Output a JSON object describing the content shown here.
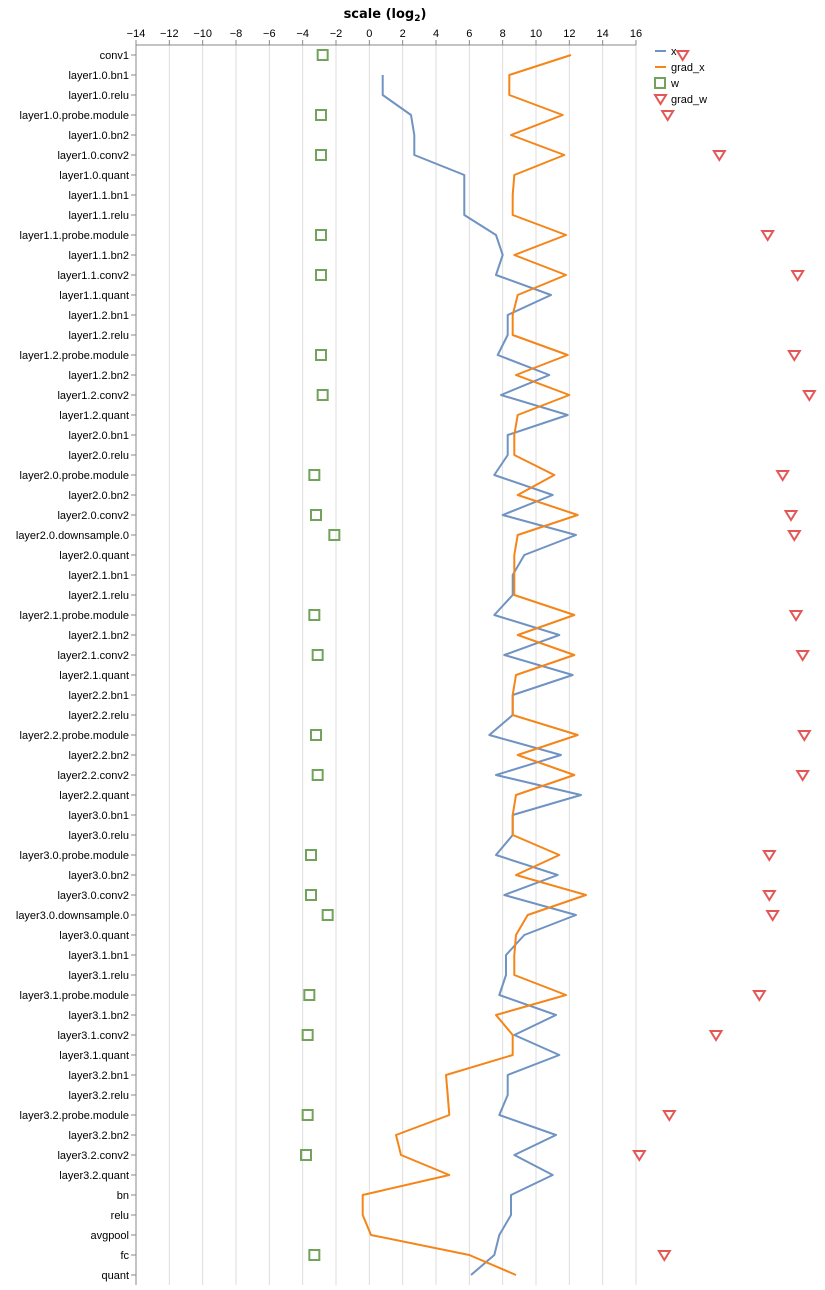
{
  "chart_data": {
    "type": "line",
    "title": "",
    "xlabel": "scale (log",
    "xlabel_sub": "2",
    "xlabel_close": ")",
    "xlim": [
      -14,
      16
    ],
    "x_ticks": [
      -14,
      -12,
      -10,
      -8,
      -6,
      -4,
      -2,
      0,
      2,
      4,
      6,
      8,
      10,
      12,
      14,
      16
    ],
    "x_tick_labels": [
      "−14",
      "−12",
      "−10",
      "−8",
      "−6",
      "−4",
      "−2",
      "0",
      "2",
      "4",
      "6",
      "8",
      "10",
      "12",
      "14",
      "16"
    ],
    "grid": true,
    "legend_position": "top-right",
    "categories": [
      "conv1",
      "layer1.0.bn1",
      "layer1.0.relu",
      "layer1.0.probe.module",
      "layer1.0.bn2",
      "layer1.0.conv2",
      "layer1.0.quant",
      "layer1.1.bn1",
      "layer1.1.relu",
      "layer1.1.probe.module",
      "layer1.1.bn2",
      "layer1.1.conv2",
      "layer1.1.quant",
      "layer1.2.bn1",
      "layer1.2.relu",
      "layer1.2.probe.module",
      "layer1.2.bn2",
      "layer1.2.conv2",
      "layer1.2.quant",
      "layer2.0.bn1",
      "layer2.0.relu",
      "layer2.0.probe.module",
      "layer2.0.bn2",
      "layer2.0.conv2",
      "layer2.0.downsample.0",
      "layer2.0.quant",
      "layer2.1.bn1",
      "layer2.1.relu",
      "layer2.1.probe.module",
      "layer2.1.bn2",
      "layer2.1.conv2",
      "layer2.1.quant",
      "layer2.2.bn1",
      "layer2.2.relu",
      "layer2.2.probe.module",
      "layer2.2.bn2",
      "layer2.2.conv2",
      "layer2.2.quant",
      "layer3.0.bn1",
      "layer3.0.relu",
      "layer3.0.probe.module",
      "layer3.0.bn2",
      "layer3.0.conv2",
      "layer3.0.downsample.0",
      "layer3.0.quant",
      "layer3.1.bn1",
      "layer3.1.relu",
      "layer3.1.probe.module",
      "layer3.1.bn2",
      "layer3.1.conv2",
      "layer3.1.quant",
      "layer3.2.bn1",
      "layer3.2.relu",
      "layer3.2.probe.module",
      "layer3.2.bn2",
      "layer3.2.conv2",
      "layer3.2.quant",
      "bn",
      "relu",
      "avgpool",
      "fc",
      "quant"
    ],
    "series": [
      {
        "name": "x",
        "mark": "line",
        "color": "#6f93c2",
        "values": [
          null,
          0.8,
          0.8,
          2.5,
          2.7,
          2.7,
          5.7,
          5.7,
          5.7,
          7.6,
          8.0,
          7.6,
          10.9,
          8.3,
          8.3,
          7.7,
          10.8,
          7.9,
          11.9,
          8.3,
          8.3,
          7.5,
          11.0,
          8.0,
          12.4,
          9.3,
          8.6,
          8.6,
          7.5,
          11.4,
          8.1,
          12.2,
          8.6,
          8.6,
          7.2,
          11.5,
          7.6,
          12.7,
          8.6,
          8.6,
          7.6,
          11.3,
          8.1,
          12.4,
          9.3,
          8.2,
          8.2,
          7.8,
          11.2,
          8.7,
          11.4,
          8.3,
          8.3,
          7.8,
          11.2,
          8.7,
          11.0,
          8.5,
          8.5,
          7.8,
          7.5,
          6.1
        ]
      },
      {
        "name": "grad_x",
        "mark": "line",
        "color": "#f58518",
        "values": [
          12.1,
          8.4,
          8.4,
          11.6,
          8.5,
          11.7,
          8.7,
          8.6,
          8.6,
          11.8,
          8.7,
          11.8,
          8.9,
          8.6,
          8.6,
          11.9,
          8.8,
          12.0,
          8.9,
          8.7,
          8.7,
          11.1,
          8.9,
          12.5,
          8.9,
          8.7,
          8.7,
          8.7,
          12.3,
          8.9,
          12.3,
          8.8,
          8.6,
          8.6,
          12.5,
          8.9,
          12.3,
          8.8,
          8.6,
          8.6,
          11.4,
          8.8,
          13.0,
          9.5,
          8.8,
          8.7,
          8.7,
          11.8,
          7.6,
          8.6,
          8.6,
          4.6,
          4.7,
          4.8,
          1.6,
          1.9,
          4.8,
          -0.4,
          -0.4,
          0.1,
          6.0,
          8.8
        ]
      },
      {
        "name": "w",
        "mark": "square",
        "color": "#72a35b",
        "values": [
          -2.8,
          null,
          null,
          -2.9,
          null,
          -2.9,
          null,
          null,
          null,
          -2.9,
          null,
          -2.9,
          null,
          null,
          null,
          -2.9,
          null,
          -2.8,
          null,
          null,
          null,
          -3.3,
          null,
          -3.2,
          -2.1,
          null,
          null,
          null,
          -3.3,
          null,
          -3.1,
          null,
          null,
          null,
          -3.2,
          null,
          -3.1,
          null,
          null,
          null,
          -3.5,
          null,
          -3.5,
          -2.5,
          null,
          null,
          null,
          -3.6,
          null,
          -3.7,
          null,
          null,
          null,
          -3.7,
          null,
          -3.8,
          null,
          null,
          null,
          null,
          -3.3,
          null
        ]
      },
      {
        "name": "grad_w",
        "mark": "triangle",
        "color": "#e45756",
        "values": [
          18.8,
          null,
          null,
          17.9,
          null,
          21.0,
          null,
          null,
          null,
          23.9,
          null,
          25.7,
          null,
          null,
          null,
          25.5,
          null,
          26.4,
          null,
          null,
          null,
          24.8,
          null,
          25.3,
          25.5,
          null,
          null,
          null,
          25.6,
          null,
          26.0,
          null,
          null,
          null,
          26.1,
          null,
          26.0,
          null,
          null,
          null,
          24.0,
          null,
          24.0,
          24.2,
          null,
          null,
          null,
          23.4,
          null,
          20.8,
          null,
          null,
          null,
          18.0,
          null,
          16.2,
          null,
          null,
          null,
          null,
          17.7,
          null
        ]
      }
    ]
  }
}
